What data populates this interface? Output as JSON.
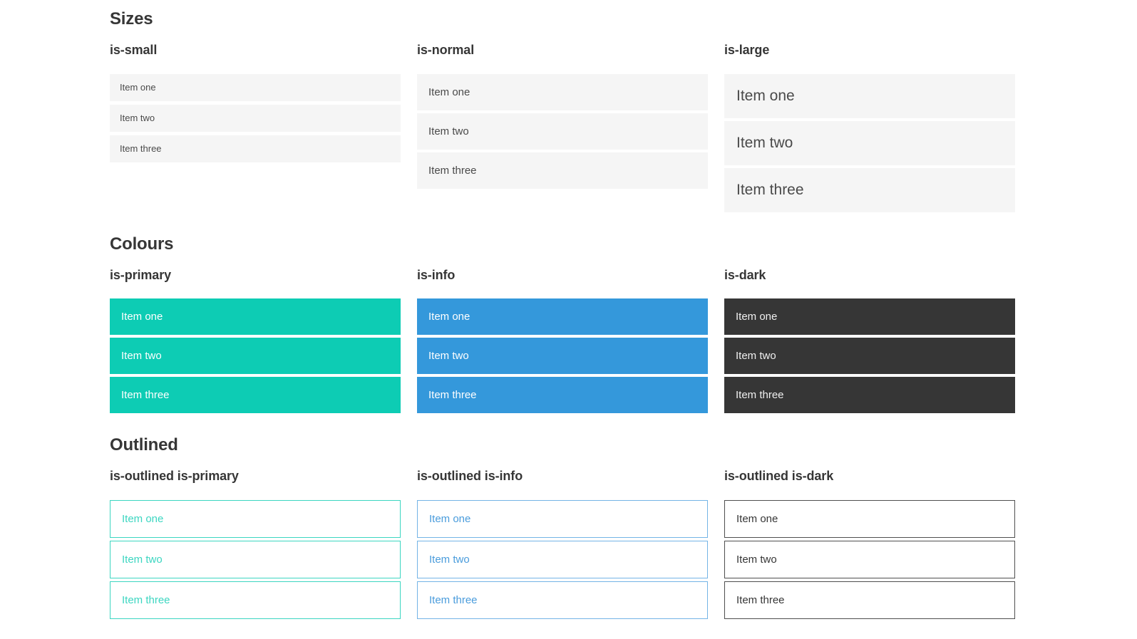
{
  "colors": {
    "heading": "#363636",
    "item_bg": "#f5f5f5",
    "item_text": "#4a4a4a",
    "primary": "#0dccb4",
    "info": "#3498db",
    "dark": "#363636",
    "outline_primary": "#3cd6c1",
    "outline_info_border": "#74b4e6",
    "outline_info_text": "#4a9cdc",
    "outline_dark_border": "#4f4f4f",
    "outline_dark_text": "#363636"
  },
  "sections": [
    {
      "title": "Sizes",
      "groups": [
        {
          "label": "is-small",
          "variant": "small",
          "items": [
            "Item one",
            "Item two",
            "Item three"
          ]
        },
        {
          "label": "is-normal",
          "variant": "normal",
          "items": [
            "Item one",
            "Item two",
            "Item three"
          ]
        },
        {
          "label": "is-large",
          "variant": "large",
          "items": [
            "Item one",
            "Item two",
            "Item three"
          ]
        }
      ]
    },
    {
      "title": "Colours",
      "groups": [
        {
          "label": "is-primary",
          "variant": "primary",
          "items": [
            "Item one",
            "Item two",
            "Item three"
          ]
        },
        {
          "label": "is-info",
          "variant": "info",
          "items": [
            "Item one",
            "Item two",
            "Item three"
          ]
        },
        {
          "label": "is-dark",
          "variant": "dark",
          "items": [
            "Item one",
            "Item two",
            "Item three"
          ]
        }
      ]
    },
    {
      "title": "Outlined",
      "groups": [
        {
          "label": "is-outlined is-primary",
          "variant": "outlined-primary",
          "items": [
            "Item one",
            "Item two",
            "Item three"
          ]
        },
        {
          "label": "is-outlined is-info",
          "variant": "outlined-info",
          "items": [
            "Item one",
            "Item two",
            "Item three"
          ]
        },
        {
          "label": "is-outlined is-dark",
          "variant": "outlined-dark",
          "items": [
            "Item one",
            "Item two",
            "Item three"
          ]
        }
      ]
    }
  ]
}
